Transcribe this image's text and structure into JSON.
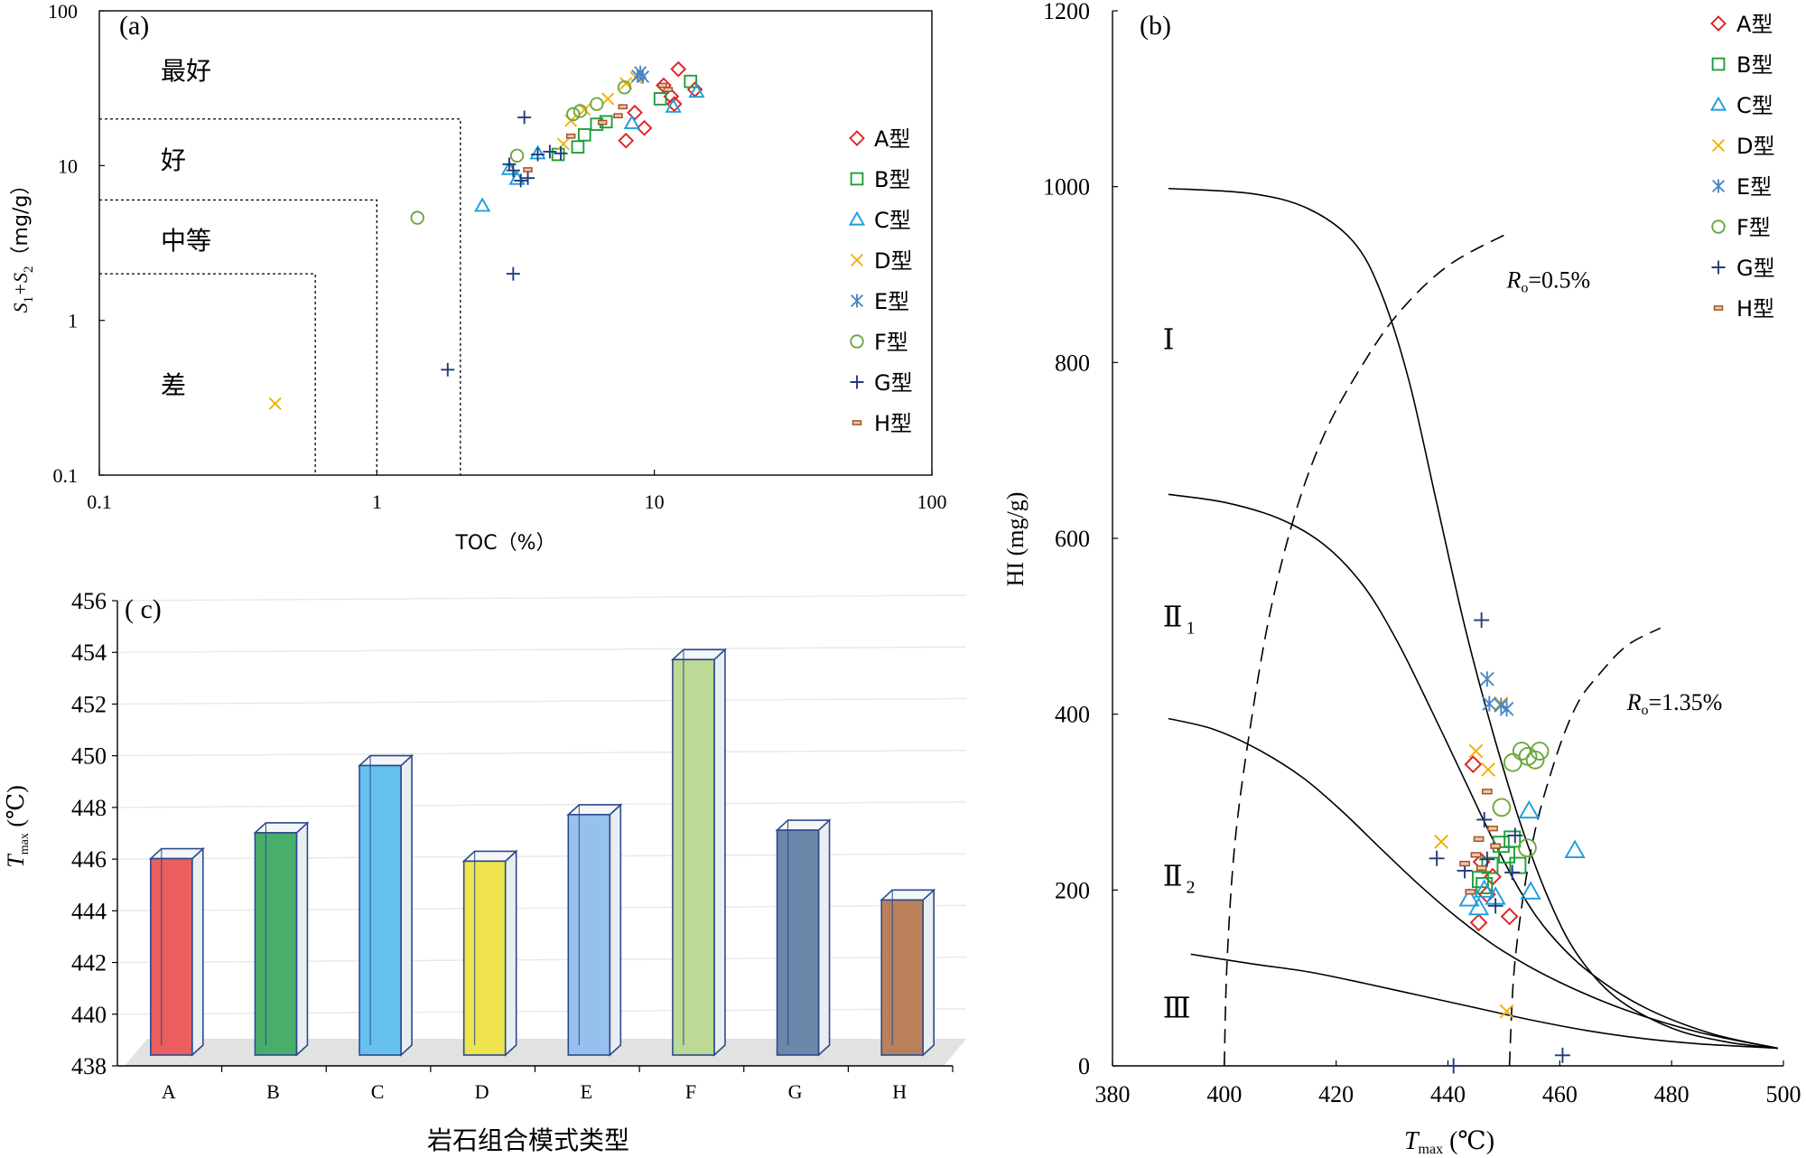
{
  "chart_data": [
    {
      "id": "a",
      "type": "scatter",
      "panel_label": "(a)",
      "xlabel": "TOC（%）",
      "ylabel_parts": [
        "S",
        "1",
        "+S",
        "2",
        "（mg/g）"
      ],
      "xscale": "log",
      "yscale": "log",
      "xlim": [
        0.1,
        100
      ],
      "ylim": [
        0.1,
        100
      ],
      "x_ticks": [
        0.1,
        1,
        10,
        100
      ],
      "x_tick_labels": [
        "0.1",
        "1",
        "10",
        "100"
      ],
      "y_ticks": [
        0.1,
        1,
        10,
        100
      ],
      "y_tick_labels": [
        "0.1",
        "1",
        "10",
        "100"
      ],
      "zones": [
        {
          "label": "最好",
          "max_toc": null,
          "max_s": null
        },
        {
          "label": "好",
          "max_toc": 2,
          "max_s": 20
        },
        {
          "label": "中等",
          "max_toc": 1,
          "max_s": 6
        },
        {
          "label": "差",
          "max_toc": 0.6,
          "max_s": 2
        }
      ],
      "legend_position": "right",
      "series": [
        {
          "name": "A型",
          "marker": "diamond",
          "color": "#e02020",
          "points": [
            [
              7.9,
              14.5
            ],
            [
              8.5,
              22
            ],
            [
              9.2,
              17.5
            ],
            [
              10.8,
              33
            ],
            [
              11.5,
              28
            ],
            [
              11.8,
              25
            ],
            [
              12.2,
              42
            ],
            [
              14.0,
              31
            ]
          ]
        },
        {
          "name": "B型",
          "marker": "square",
          "color": "#1e9e3a",
          "points": [
            [
              4.5,
              11.8
            ],
            [
              5.3,
              13.2
            ],
            [
              5.6,
              15.8
            ],
            [
              6.2,
              18.5
            ],
            [
              6.7,
              19.2
            ],
            [
              10.5,
              27
            ],
            [
              13.5,
              35
            ]
          ]
        },
        {
          "name": "C型",
          "marker": "triangle",
          "color": "#1c9ddd",
          "points": [
            [
              2.4,
              5.5
            ],
            [
              3.0,
              9.5
            ],
            [
              3.2,
              8.2
            ],
            [
              3.8,
              12
            ],
            [
              8.3,
              18.8
            ],
            [
              11.7,
              24
            ],
            [
              14.2,
              30
            ]
          ]
        },
        {
          "name": "D型",
          "marker": "x",
          "color": "#f0b000",
          "points": [
            [
              0.43,
              0.29
            ],
            [
              4.7,
              13.8
            ],
            [
              5.0,
              19.5
            ],
            [
              5.6,
              23
            ],
            [
              6.8,
              27
            ],
            [
              7.9,
              34
            ],
            [
              8.6,
              37
            ]
          ]
        },
        {
          "name": "E型",
          "marker": "star",
          "color": "#4a86c5",
          "points": [
            [
              8.7,
              38
            ],
            [
              8.9,
              40
            ],
            [
              9.1,
              37.5
            ]
          ]
        },
        {
          "name": "F型",
          "marker": "circle",
          "color": "#6aa83c",
          "points": [
            [
              1.4,
              4.6
            ],
            [
              3.2,
              11.6
            ],
            [
              5.1,
              21.5
            ],
            [
              5.4,
              22.5
            ],
            [
              6.2,
              25
            ],
            [
              7.8,
              32
            ]
          ]
        },
        {
          "name": "G型",
          "marker": "plus",
          "color": "#1f3c7c",
          "points": [
            [
              1.8,
              0.48
            ],
            [
              3.1,
              2.0
            ],
            [
              3.0,
              10.2
            ],
            [
              3.1,
              9.3
            ],
            [
              3.3,
              8.0
            ],
            [
              3.4,
              20.5
            ],
            [
              3.5,
              8.3
            ],
            [
              3.8,
              11.8
            ],
            [
              4.2,
              12.3
            ],
            [
              4.6,
              12.0
            ]
          ]
        },
        {
          "name": "H型",
          "marker": "dash",
          "color": "#a0522d",
          "points": [
            [
              3.5,
              9.4
            ],
            [
              5.0,
              15.5
            ],
            [
              6.5,
              19
            ],
            [
              7.4,
              21
            ],
            [
              7.7,
              24
            ],
            [
              10.7,
              33
            ],
            [
              11.2,
              31
            ]
          ]
        }
      ]
    },
    {
      "id": "b",
      "type": "scatter",
      "panel_label": "(b)",
      "xlabel_parts": [
        "T",
        "max",
        " (℃)"
      ],
      "ylabel": "HI (mg/g)",
      "xlim": [
        380,
        500
      ],
      "ylim": [
        0,
        1200
      ],
      "x_ticks": [
        380,
        400,
        420,
        440,
        460,
        480,
        500
      ],
      "y_ticks": [
        0,
        200,
        400,
        600,
        800,
        1000,
        1200
      ],
      "zone_labels": [
        {
          "text": "Ⅰ",
          "sub": "",
          "at": [
            389,
            815
          ]
        },
        {
          "text": "Ⅱ",
          "sub": "1",
          "at": [
            389,
            500
          ]
        },
        {
          "text": "Ⅱ",
          "sub": "2",
          "at": [
            389,
            205
          ]
        },
        {
          "text": "Ⅲ",
          "sub": "",
          "at": [
            389,
            55
          ]
        }
      ],
      "ro_labels": [
        {
          "prefix": "R",
          "sub": "o",
          "value": "=0.5%",
          "at": [
            450.5,
            885
          ]
        },
        {
          "prefix": "R",
          "sub": "o",
          "value": "=1.35%",
          "at": [
            472,
            405
          ]
        }
      ],
      "curves": {
        "type_I": [
          [
            390,
            998
          ],
          [
            405,
            992
          ],
          [
            415,
            975
          ],
          [
            423,
            938
          ],
          [
            428,
            880
          ],
          [
            433,
            780
          ],
          [
            438,
            640
          ],
          [
            443,
            500
          ],
          [
            448,
            380
          ],
          [
            453,
            275
          ],
          [
            458,
            190
          ],
          [
            463,
            128
          ],
          [
            470,
            78
          ],
          [
            480,
            43
          ],
          [
            490,
            27
          ],
          [
            499,
            20
          ]
        ],
        "type_II1": [
          [
            390,
            650
          ],
          [
            400,
            641
          ],
          [
            410,
            622
          ],
          [
            418,
            592
          ],
          [
            425,
            545
          ],
          [
            431,
            482
          ],
          [
            437,
            405
          ],
          [
            443,
            325
          ],
          [
            448,
            258
          ],
          [
            453,
            198
          ],
          [
            458,
            152
          ],
          [
            465,
            108
          ],
          [
            475,
            67
          ],
          [
            487,
            37
          ],
          [
            499,
            20
          ]
        ],
        "type_II2": [
          [
            390,
            395
          ],
          [
            398,
            383
          ],
          [
            406,
            360
          ],
          [
            414,
            328
          ],
          [
            421,
            290
          ],
          [
            428,
            247
          ],
          [
            435,
            205
          ],
          [
            442,
            167
          ],
          [
            450,
            130
          ],
          [
            460,
            95
          ],
          [
            472,
            63
          ],
          [
            485,
            38
          ],
          [
            499,
            20
          ]
        ],
        "type_III": [
          [
            394,
            127
          ],
          [
            405,
            116
          ],
          [
            415,
            107
          ],
          [
            425,
            94
          ],
          [
            435,
            80
          ],
          [
            445,
            66
          ],
          [
            455,
            52
          ],
          [
            465,
            40
          ],
          [
            475,
            31
          ],
          [
            485,
            25
          ],
          [
            499,
            20
          ]
        ],
        "ro_05": [
          [
            400,
            0
          ],
          [
            400.5,
            120
          ],
          [
            402,
            260
          ],
          [
            405,
            400
          ],
          [
            408.5,
            525
          ],
          [
            413,
            635
          ],
          [
            418,
            720
          ],
          [
            424,
            790
          ],
          [
            431,
            855
          ],
          [
            440,
            910
          ],
          [
            451,
            948
          ]
        ],
        "ro_135": [
          [
            451,
            0
          ],
          [
            452,
            120
          ],
          [
            455,
            250
          ],
          [
            459,
            345
          ],
          [
            463,
            410
          ],
          [
            467,
            445
          ],
          [
            472,
            478
          ],
          [
            478,
            498
          ]
        ]
      },
      "series": [
        {
          "name": "A型",
          "marker": "diamond",
          "color": "#e02020",
          "points": [
            [
              444.5,
              343
            ],
            [
              445.5,
              163
            ],
            [
              446,
              232
            ],
            [
              447,
              195
            ],
            [
              448,
              215
            ],
            [
              451,
              170
            ]
          ]
        },
        {
          "name": "B型",
          "marker": "square",
          "color": "#1e9e3a",
          "points": [
            [
              445.8,
              212
            ],
            [
              446.5,
              205
            ],
            [
              447.5,
              228
            ],
            [
              449.5,
              252
            ],
            [
              450.5,
              240
            ],
            [
              451.5,
              258
            ],
            [
              452.5,
              228
            ]
          ]
        },
        {
          "name": "C型",
          "marker": "triangle",
          "color": "#1c9ddd",
          "points": [
            [
              443.8,
              190
            ],
            [
              445.5,
              180
            ],
            [
              446.5,
              200
            ],
            [
              448.5,
              192
            ],
            [
              454.5,
              290
            ],
            [
              454.8,
              198
            ],
            [
              462.7,
              245
            ]
          ]
        },
        {
          "name": "D型",
          "marker": "x",
          "color": "#f0b000",
          "points": [
            [
              438.8,
              255
            ],
            [
              445,
              358
            ],
            [
              447.2,
              337
            ],
            [
              449.5,
              412
            ],
            [
              450.5,
              62
            ]
          ]
        },
        {
          "name": "E型",
          "marker": "star",
          "color": "#4a86c5",
          "points": [
            [
              447,
              440
            ],
            [
              447.4,
              412
            ],
            [
              449.5,
              410
            ],
            [
              450.5,
              406
            ]
          ]
        },
        {
          "name": "F型",
          "marker": "circle",
          "color": "#6aa83c",
          "points": [
            [
              449.6,
              294
            ],
            [
              451.6,
              345
            ],
            [
              453.2,
              358
            ],
            [
              454.3,
              352
            ],
            [
              455.6,
              348
            ],
            [
              456.4,
              358
            ],
            [
              454.2,
              248
            ]
          ]
        },
        {
          "name": "G型",
          "marker": "plus",
          "color": "#1f3c7c",
          "points": [
            [
              441,
              0
            ],
            [
              443,
              222
            ],
            [
              446,
              507
            ],
            [
              446.5,
              280
            ],
            [
              447,
              235
            ],
            [
              438,
              236
            ],
            [
              448.5,
              182
            ],
            [
              451.5,
              220
            ],
            [
              452,
              262
            ],
            [
              460.5,
              12
            ]
          ]
        },
        {
          "name": "H型",
          "marker": "dash",
          "color": "#a0522d",
          "points": [
            [
              443,
              230
            ],
            [
              444,
              198
            ],
            [
              445,
              240
            ],
            [
              445.5,
              258
            ],
            [
              446,
              225
            ],
            [
              447,
              312
            ],
            [
              448,
              270
            ],
            [
              448.5,
              250
            ]
          ]
        }
      ]
    },
    {
      "id": "c",
      "type": "bar",
      "panel_label": "( c)",
      "xlabel": "岩石组合模式类型",
      "ylabel_parts": [
        "T",
        "max",
        " (℃)"
      ],
      "ylim": [
        438,
        456
      ],
      "y_ticks": [
        438,
        440,
        442,
        444,
        446,
        448,
        450,
        452,
        454,
        456
      ],
      "grid": true,
      "categories": [
        "A",
        "B",
        "C",
        "D",
        "E",
        "F",
        "G",
        "H"
      ],
      "values": [
        446.3,
        447.3,
        449.9,
        446.2,
        448.0,
        454.0,
        447.4,
        444.7
      ],
      "colors": [
        "#ea5e5e",
        "#49ad6b",
        "#66c1ee",
        "#f0e44e",
        "#96c1ec",
        "#bcd995",
        "#6c87aa",
        "#b9805a"
      ]
    }
  ]
}
